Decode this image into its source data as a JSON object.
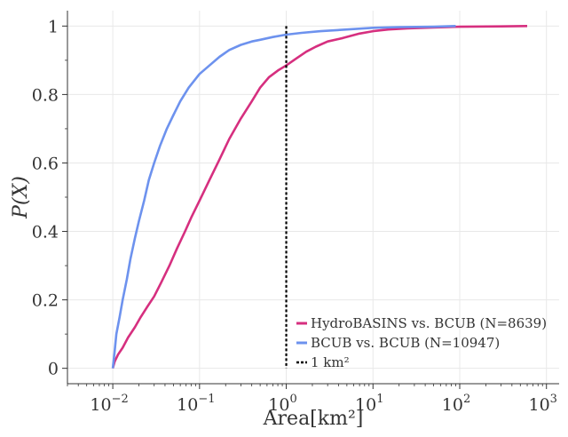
{
  "chart_data": {
    "type": "line",
    "title": "",
    "xlabel": "Area[km²]",
    "ylabel": "P(X)",
    "xscale": "log",
    "xlim": [
      0.003,
      1400
    ],
    "ylim": [
      -0.045,
      1.045
    ],
    "xticks": [
      {
        "value": 0.01,
        "base": "10",
        "exp": "−2"
      },
      {
        "value": 0.1,
        "base": "10",
        "exp": "−1"
      },
      {
        "value": 1,
        "base": "10",
        "exp": "0"
      },
      {
        "value": 10,
        "base": "10",
        "exp": "1"
      },
      {
        "value": 100,
        "base": "10",
        "exp": "2"
      },
      {
        "value": 1000,
        "base": "10",
        "exp": "3"
      }
    ],
    "yticks": [
      "0",
      "0.2",
      "0.4",
      "0.6",
      "0.8",
      "1"
    ],
    "grid": true,
    "legend_position": "bottom-right",
    "series": [
      {
        "name": "HydroBASINS vs. BCUB (N=8639)",
        "color": "#d62f7f",
        "points": [
          [
            0.01,
            0.0
          ],
          [
            0.0105,
            0.02
          ],
          [
            0.0115,
            0.04
          ],
          [
            0.013,
            0.06
          ],
          [
            0.015,
            0.09
          ],
          [
            0.018,
            0.12
          ],
          [
            0.021,
            0.15
          ],
          [
            0.025,
            0.18
          ],
          [
            0.03,
            0.21
          ],
          [
            0.036,
            0.25
          ],
          [
            0.045,
            0.3
          ],
          [
            0.055,
            0.35
          ],
          [
            0.068,
            0.4
          ],
          [
            0.08,
            0.44
          ],
          [
            0.1,
            0.49
          ],
          [
            0.13,
            0.55
          ],
          [
            0.17,
            0.61
          ],
          [
            0.22,
            0.67
          ],
          [
            0.3,
            0.73
          ],
          [
            0.4,
            0.78
          ],
          [
            0.5,
            0.82
          ],
          [
            0.63,
            0.85
          ],
          [
            0.8,
            0.87
          ],
          [
            1.0,
            0.885
          ],
          [
            1.3,
            0.905
          ],
          [
            1.7,
            0.925
          ],
          [
            2.2,
            0.94
          ],
          [
            3.0,
            0.955
          ],
          [
            4.5,
            0.965
          ],
          [
            7,
            0.978
          ],
          [
            10,
            0.985
          ],
          [
            15,
            0.99
          ],
          [
            25,
            0.993
          ],
          [
            50,
            0.996
          ],
          [
            100,
            0.998
          ],
          [
            300,
            0.999
          ],
          [
            600,
            1.0
          ]
        ]
      },
      {
        "name": "BCUB vs. BCUB (N=10947)",
        "color": "#6d92ee",
        "points": [
          [
            0.01,
            0.0
          ],
          [
            0.0105,
            0.05
          ],
          [
            0.011,
            0.1
          ],
          [
            0.012,
            0.15
          ],
          [
            0.013,
            0.2
          ],
          [
            0.0145,
            0.26
          ],
          [
            0.016,
            0.32
          ],
          [
            0.018,
            0.38
          ],
          [
            0.02,
            0.43
          ],
          [
            0.023,
            0.49
          ],
          [
            0.026,
            0.55
          ],
          [
            0.03,
            0.6
          ],
          [
            0.035,
            0.65
          ],
          [
            0.042,
            0.7
          ],
          [
            0.05,
            0.74
          ],
          [
            0.06,
            0.78
          ],
          [
            0.075,
            0.82
          ],
          [
            0.1,
            0.86
          ],
          [
            0.13,
            0.885
          ],
          [
            0.17,
            0.91
          ],
          [
            0.22,
            0.93
          ],
          [
            0.3,
            0.945
          ],
          [
            0.4,
            0.955
          ],
          [
            0.5,
            0.96
          ],
          [
            0.7,
            0.968
          ],
          [
            1.0,
            0.975
          ],
          [
            1.5,
            0.98
          ],
          [
            2.5,
            0.985
          ],
          [
            5,
            0.99
          ],
          [
            10,
            0.995
          ],
          [
            20,
            0.997
          ],
          [
            50,
            0.998
          ],
          [
            90,
            1.0
          ]
        ]
      }
    ],
    "reference_line": {
      "name": "1 km²",
      "x": 1,
      "color": "#000000"
    }
  }
}
